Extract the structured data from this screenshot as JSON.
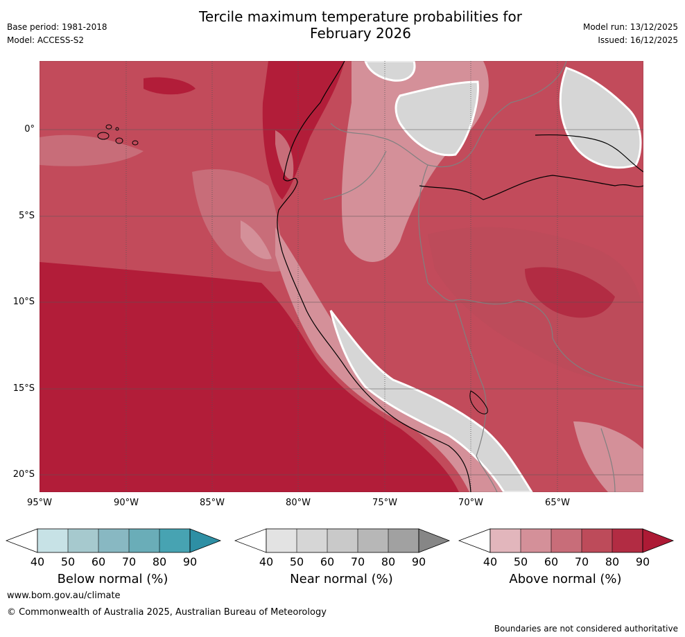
{
  "header": {
    "title_line1": "Tercile maximum temperature probabilities for",
    "title_line2": "February 2026",
    "base_period": "Base period: 1981-2018",
    "model": "Model: ACCESS-S2",
    "model_run": "Model run: 13/12/2025",
    "issued": "Issued: 16/12/2025"
  },
  "map": {
    "lat_labels": [
      "0°",
      "5°S",
      "10°S",
      "15°S",
      "20°S"
    ],
    "lon_labels": [
      "95°W",
      "90°W",
      "85°W",
      "80°W",
      "75°W",
      "70°W",
      "65°W"
    ],
    "extent": {
      "lon_min": -95,
      "lon_max": -60,
      "lat_min": -21,
      "lat_max": 4
    }
  },
  "legends": [
    {
      "title": "Below normal (%)",
      "ticks": [
        "40",
        "50",
        "60",
        "70",
        "80",
        "90"
      ],
      "colors": [
        "#c7e2e6",
        "#a6c9ce",
        "#88b8c2",
        "#6aadb8",
        "#47a3b2",
        "#2e8fa4"
      ]
    },
    {
      "title": "Near normal (%)",
      "ticks": [
        "40",
        "50",
        "60",
        "70",
        "80",
        "90"
      ],
      "colors": [
        "#e3e3e3",
        "#d6d6d6",
        "#c9c9c9",
        "#b7b7b7",
        "#a1a1a1",
        "#868686"
      ]
    },
    {
      "title": "Above normal (%)",
      "ticks": [
        "40",
        "50",
        "60",
        "70",
        "80",
        "90"
      ],
      "colors": [
        "#e2b6bc",
        "#d49099",
        "#c86d79",
        "#bd4b5a",
        "#b22c43",
        "#ad1a35"
      ]
    }
  ],
  "footer": {
    "website": "www.bom.gov.au/climate",
    "copyright": "© Commonwealth of Australia 2025, Australian Bureau of Meteorology",
    "disclaimer": "Boundaries are not considered authoritative"
  }
}
